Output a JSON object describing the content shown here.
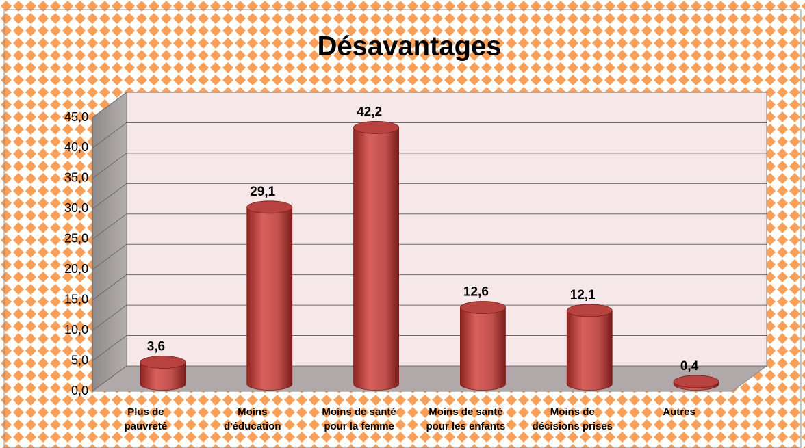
{
  "chart_data": {
    "type": "bar3d-cylinder",
    "title": "Désavantages",
    "categories": [
      "Plus de\npauvreté",
      "Moins\nd'éducation",
      "Moins de santé\npour la femme",
      "Moins de santé\npour les enfants",
      "Moins de\ndécisions prises",
      "Autres"
    ],
    "values": [
      3.6,
      29.1,
      42.2,
      12.6,
      12.1,
      0.4
    ],
    "value_labels": [
      "3,6",
      "29,1",
      "42,2",
      "12,6",
      "12,1",
      "0,4"
    ],
    "color": "#c0504d",
    "ylim": [
      0,
      45
    ],
    "yticks": [
      {
        "value": 0,
        "label": "0,0"
      },
      {
        "value": 5,
        "label": "5,0"
      },
      {
        "value": 10,
        "label": "10,0"
      },
      {
        "value": 15,
        "label": "15,0"
      },
      {
        "value": 20,
        "label": "20,0"
      },
      {
        "value": 25,
        "label": "25,0"
      },
      {
        "value": 30,
        "label": "30,0"
      },
      {
        "value": 35,
        "label": "35,0"
      },
      {
        "value": 40,
        "label": "40,0"
      },
      {
        "value": 45,
        "label": "45,0"
      }
    ],
    "grid": true
  }
}
